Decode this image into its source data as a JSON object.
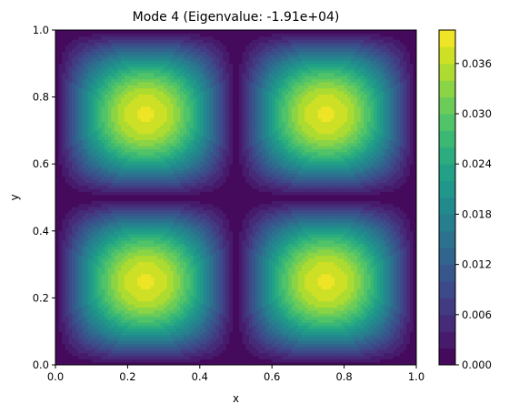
{
  "chart_data": {
    "type": "contour",
    "title": "Mode 4 (Eigenvalue: -1.91e+04)",
    "xlabel": "x",
    "ylabel": "y",
    "xlim": [
      0.0,
      1.0
    ],
    "ylim": [
      0.0,
      1.0
    ],
    "xticks": [
      "0.0",
      "0.2",
      "0.4",
      "0.6",
      "0.8",
      "1.0"
    ],
    "yticks": [
      "0.0",
      "0.2",
      "0.4",
      "0.6",
      "0.8",
      "1.0"
    ],
    "colormap": "viridis",
    "field": "|sin(2πx)·sin(2πy)|",
    "field_max": 0.0385,
    "peaks": [
      {
        "x": 0.24,
        "y": 0.24,
        "value": 0.0385
      },
      {
        "x": 0.76,
        "y": 0.24,
        "value": 0.0385
      },
      {
        "x": 0.24,
        "y": 0.76,
        "value": 0.0385
      },
      {
        "x": 0.76,
        "y": 0.76,
        "value": 0.0385
      }
    ],
    "levels": 20,
    "level_min": 0.0,
    "level_max": 0.04,
    "colorbar": {
      "ticks": [
        "0.000",
        "0.006",
        "0.012",
        "0.018",
        "0.024",
        "0.030",
        "0.036"
      ],
      "tick_values": [
        0.0,
        0.006,
        0.012,
        0.018,
        0.024,
        0.03,
        0.036
      ]
    },
    "grid": false
  }
}
